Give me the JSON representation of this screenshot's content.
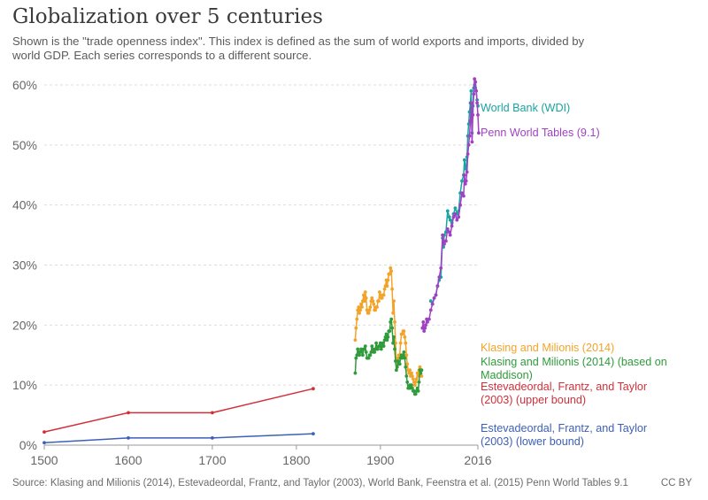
{
  "header": {
    "title": "Globalization over 5 centuries",
    "subtitle": "Shown is the \"trade openness index\". This index is defined as the sum of world exports and imports, divided by world GDP. Each series corresponds to a different source."
  },
  "footer": {
    "source": "Source: Klasing and Milionis (2014), Estevadeordal, Frantz, and Taylor (2003), World Bank, Feenstra et al. (2015) Penn World Tables 9.1",
    "license": "CC BY"
  },
  "chart_data": {
    "type": "line",
    "title": "Globalization over 5 centuries",
    "xlabel": "",
    "ylabel": "",
    "xlim": [
      1500,
      2016
    ],
    "ylim": [
      0,
      60
    ],
    "grid": true,
    "x_ticks": [
      1500,
      1600,
      1700,
      1800,
      1900,
      2016
    ],
    "y_ticks": [
      0,
      10,
      20,
      30,
      40,
      50,
      60
    ],
    "y_tick_labels": [
      "0%",
      "10%",
      "20%",
      "30%",
      "40%",
      "50%",
      "60%"
    ],
    "series": [
      {
        "name": "World Bank (WDI)",
        "label_lines": [
          "World Bank (WDI)"
        ],
        "color": "#1aa3a0",
        "x": [
          1960,
          1962,
          1964,
          1966,
          1968,
          1970,
          1972,
          1974,
          1975,
          1976,
          1978,
          1980,
          1982,
          1983,
          1985,
          1987,
          1989,
          1991,
          1993,
          1995,
          1997,
          1999,
          2000,
          2001,
          2002,
          2003,
          2004,
          2005,
          2006,
          2007,
          2008,
          2009,
          2010,
          2011,
          2012,
          2013,
          2014,
          2015,
          2016
        ],
        "y": [
          24.0,
          23.5,
          24.5,
          25.0,
          26.5,
          27.5,
          28.0,
          34.5,
          33.0,
          35.0,
          35.5,
          39.0,
          38.0,
          37.5,
          37.0,
          38.5,
          39.5,
          38.5,
          39.0,
          42.0,
          44.0,
          45.0,
          47.5,
          46.5,
          46.0,
          48.0,
          51.5,
          53.5,
          55.5,
          57.0,
          59.0,
          52.0,
          56.5,
          59.5,
          60.0,
          59.5,
          59.0,
          57.5,
          56.5
        ]
      },
      {
        "name": "Penn World Tables (9.1)",
        "label_lines": [
          "Penn World Tables (9.1)"
        ],
        "color": "#a041c4",
        "x": [
          1950,
          1951,
          1952,
          1953,
          1954,
          1955,
          1956,
          1958,
          1960,
          1962,
          1964,
          1966,
          1968,
          1970,
          1972,
          1974,
          1975,
          1976,
          1978,
          1980,
          1982,
          1983,
          1985,
          1987,
          1989,
          1991,
          1993,
          1995,
          1997,
          1999,
          2000,
          2001,
          2002,
          2003,
          2004,
          2005,
          2006,
          2007,
          2008,
          2009,
          2010,
          2011,
          2012,
          2013,
          2014,
          2015,
          2016,
          2017
        ],
        "y": [
          19.5,
          20.5,
          19.0,
          19.5,
          20.0,
          21.0,
          20.5,
          21.0,
          22.5,
          23.5,
          24.5,
          25.0,
          26.5,
          28.0,
          29.5,
          35.0,
          34.0,
          33.5,
          34.0,
          36.0,
          35.5,
          35.0,
          36.5,
          38.0,
          38.5,
          37.5,
          38.0,
          40.0,
          42.0,
          41.5,
          45.0,
          43.5,
          44.0,
          45.5,
          48.5,
          50.0,
          51.5,
          54.0,
          57.0,
          50.5,
          55.0,
          58.5,
          61.0,
          60.5,
          59.0,
          57.0,
          55.0,
          52.0
        ]
      },
      {
        "name": "Klasing and Milionis (2014)",
        "label_lines": [
          "Klasing and Milionis (2014)"
        ],
        "color": "#f2a42a",
        "x": [
          1870,
          1871,
          1872,
          1873,
          1874,
          1875,
          1876,
          1877,
          1878,
          1879,
          1880,
          1881,
          1882,
          1883,
          1884,
          1885,
          1886,
          1887,
          1888,
          1889,
          1890,
          1891,
          1892,
          1893,
          1894,
          1895,
          1896,
          1897,
          1898,
          1899,
          1900,
          1901,
          1902,
          1903,
          1904,
          1905,
          1906,
          1907,
          1908,
          1909,
          1910,
          1911,
          1912,
          1913,
          1914,
          1915,
          1916,
          1917,
          1918,
          1919,
          1920,
          1921,
          1922,
          1923,
          1924,
          1925,
          1926,
          1927,
          1928,
          1929,
          1930,
          1931,
          1932,
          1933,
          1934,
          1935,
          1936,
          1937,
          1938,
          1939,
          1940,
          1941,
          1942,
          1943,
          1944,
          1945,
          1946,
          1947,
          1948,
          1949
        ],
        "y": [
          17.5,
          19.5,
          21.0,
          22.5,
          23.0,
          22.0,
          22.5,
          23.5,
          23.0,
          24.0,
          25.0,
          24.0,
          25.5,
          24.5,
          22.5,
          22.0,
          22.0,
          22.5,
          23.0,
          24.0,
          24.5,
          24.0,
          23.5,
          22.5,
          22.5,
          23.0,
          23.0,
          24.0,
          24.0,
          25.5,
          25.0,
          24.5,
          24.5,
          25.0,
          25.0,
          26.0,
          26.5,
          27.5,
          26.5,
          27.5,
          28.5,
          28.5,
          29.5,
          29.0,
          26.0,
          22.0,
          24.0,
          20.5,
          17.0,
          14.0,
          13.5,
          14.5,
          15.0,
          15.0,
          17.0,
          18.5,
          18.5,
          19.0,
          19.0,
          18.0,
          17.0,
          15.0,
          13.5,
          12.5,
          12.0,
          12.5,
          11.5,
          12.0,
          11.5,
          11.0,
          10.5,
          10.0,
          10.5,
          11.0,
          12.0,
          11.5,
          12.5,
          13.0,
          12.5,
          11.5
        ]
      },
      {
        "name": "Klasing and Milionis (2014) (based on Maddison)",
        "label_lines": [
          "Klasing and Milionis (2014) (based on",
          "Maddison)"
        ],
        "color": "#2f9b3b",
        "x": [
          1870,
          1871,
          1872,
          1873,
          1874,
          1875,
          1876,
          1877,
          1878,
          1879,
          1880,
          1881,
          1882,
          1883,
          1884,
          1885,
          1886,
          1887,
          1888,
          1889,
          1890,
          1891,
          1892,
          1893,
          1894,
          1895,
          1896,
          1897,
          1898,
          1899,
          1900,
          1901,
          1902,
          1903,
          1904,
          1905,
          1906,
          1907,
          1908,
          1909,
          1910,
          1911,
          1912,
          1913,
          1914,
          1915,
          1916,
          1917,
          1918,
          1919,
          1920,
          1921,
          1922,
          1923,
          1924,
          1925,
          1926,
          1927,
          1928,
          1929,
          1930,
          1931,
          1932,
          1933,
          1934,
          1935,
          1936,
          1937,
          1938,
          1939,
          1940,
          1941,
          1942,
          1943,
          1944,
          1945,
          1946,
          1947,
          1948,
          1949
        ],
        "y": [
          12.0,
          14.5,
          15.0,
          16.0,
          15.5,
          15.0,
          15.5,
          16.0,
          15.5,
          15.0,
          16.0,
          16.0,
          16.5,
          15.5,
          14.5,
          14.5,
          14.5,
          15.0,
          15.0,
          15.5,
          16.5,
          16.0,
          15.5,
          15.5,
          16.0,
          17.0,
          16.0,
          16.0,
          16.5,
          16.5,
          17.0,
          16.0,
          16.5,
          17.0,
          16.5,
          17.5,
          18.0,
          18.5,
          17.5,
          18.0,
          19.0,
          19.0,
          20.5,
          21.0,
          19.5,
          17.0,
          18.0,
          16.0,
          14.0,
          12.5,
          13.0,
          14.0,
          13.5,
          13.5,
          14.5,
          15.0,
          14.5,
          15.0,
          15.5,
          14.5,
          13.0,
          11.5,
          10.5,
          9.5,
          9.5,
          10.0,
          9.5,
          10.0,
          9.5,
          9.0,
          9.0,
          8.5,
          8.5,
          9.0,
          9.5,
          9.0,
          10.5,
          12.5,
          12.0,
          12.5
        ]
      },
      {
        "name": "Estevadeordal, Frantz, and Taylor (2003) (upper bound)",
        "label_lines": [
          "Estevadeordal, Frantz, and Taylor",
          "(2003) (upper bound)"
        ],
        "color": "#d1303a",
        "x": [
          1500,
          1600,
          1700,
          1820
        ],
        "y": [
          2.2,
          5.4,
          5.4,
          9.4
        ]
      },
      {
        "name": "Estevadeordal, Frantz, and Taylor (2003) (lower bound)",
        "label_lines": [
          "Estevadeordal, Frantz, and Taylor",
          "(2003) (lower bound)"
        ],
        "color": "#3d5fb8",
        "x": [
          1500,
          1600,
          1700,
          1820
        ],
        "y": [
          0.4,
          1.2,
          1.2,
          1.9
        ]
      }
    ]
  }
}
